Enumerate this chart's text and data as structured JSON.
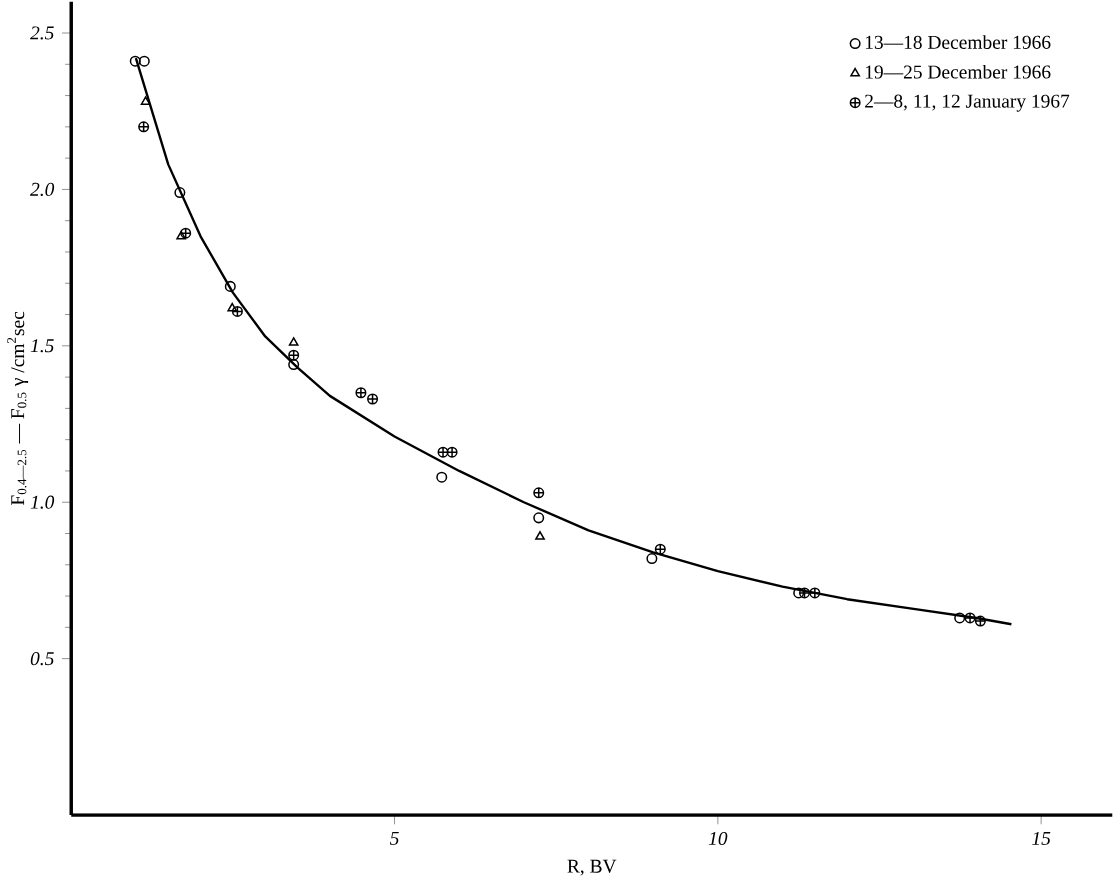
{
  "chart_data": {
    "type": "scatter",
    "xlabel": "R, BV",
    "ylabel": "F$_{0.4—2.5}$ — F$_{0.5}$ γ /cm$^{2}$sec",
    "xlim": [
      0,
      16.1
    ],
    "ylim": [
      0,
      2.6
    ],
    "xticks": [
      5,
      10,
      15
    ],
    "yticks": [
      0.5,
      {
        "value": 1.0,
        "label": "1.0"
      },
      1.5,
      {
        "value": 2.0,
        "label": "2.0"
      },
      {
        "value": 2.5,
        "label": "2.5"
      }
    ],
    "legend": "top right",
    "grid": false,
    "series": [
      {
        "name": "13—18 December 1966",
        "color": "#000000",
        "marker": "circle",
        "x": [
          0.99,
          1.13,
          1.68,
          2.46,
          3.44,
          5.73,
          7.23,
          8.98,
          11.25,
          13.74
        ],
        "values": [
          2.41,
          2.41,
          1.99,
          1.69,
          1.44,
          1.08,
          0.95,
          0.82,
          0.71,
          0.63
        ]
      },
      {
        "name": "19—25 December 1966",
        "color": "#000000",
        "marker": "triangle",
        "x": [
          1.15,
          1.7,
          2.49,
          3.44,
          7.25
        ],
        "values": [
          2.28,
          1.85,
          1.62,
          1.51,
          0.89
        ]
      },
      {
        "name": "2—8, 11, 12 January 1967",
        "color": "#000000",
        "marker": "cross",
        "x": [
          1.12,
          1.77,
          2.57,
          3.44,
          4.48,
          4.66,
          5.75,
          5.89,
          7.23,
          9.11,
          11.34,
          11.5,
          13.9,
          14.06
        ],
        "values": [
          2.2,
          1.86,
          1.61,
          1.47,
          1.35,
          1.33,
          1.16,
          1.16,
          1.03,
          0.85,
          0.71,
          0.71,
          0.63,
          0.62
        ]
      },
      {
        "type": "line",
        "color": "#000000",
        "marker": "none",
        "x": [
          1.0,
          1.5,
          2.0,
          2.5,
          3.0,
          3.5,
          4.0,
          5.0,
          6.0,
          7.0,
          8.0,
          9.0,
          10.0,
          11.0,
          12.0,
          13.0,
          14.0,
          14.54
        ],
        "values": [
          2.42,
          2.08,
          1.85,
          1.67,
          1.53,
          1.43,
          1.34,
          1.21,
          1.1,
          1.0,
          0.91,
          0.84,
          0.78,
          0.73,
          0.69,
          0.66,
          0.63,
          0.61
        ]
      }
    ]
  }
}
